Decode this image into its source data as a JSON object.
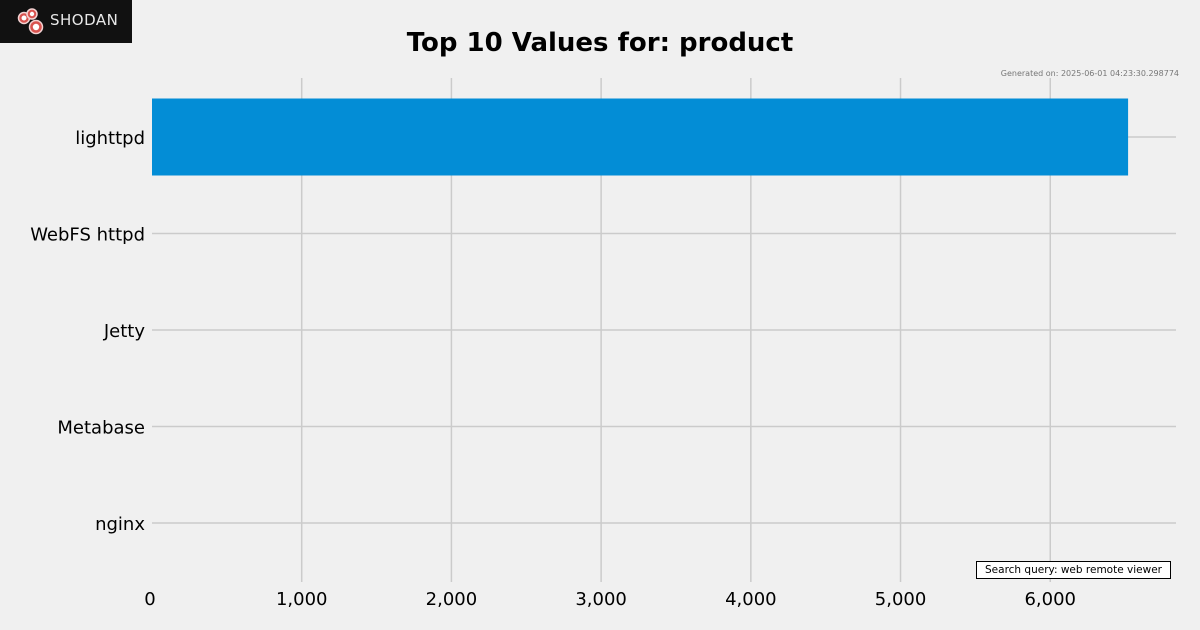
{
  "logo": {
    "text": "SHODAN"
  },
  "generated_text": "Generated on: 2025-06-01 04:23:30.298774",
  "query_text": "Search query: web remote viewer",
  "colors": {
    "bar": "#038dd6",
    "grid": "#cbcbcb",
    "background": "#f0f0f0"
  },
  "chart_data": {
    "type": "bar",
    "orientation": "horizontal",
    "title": "Top 10 Values for: product",
    "categories": [
      "lighttpd",
      "WebFS httpd",
      "Jetty",
      "Metabase",
      "nginx"
    ],
    "values": [
      6520,
      0,
      0,
      0,
      0
    ],
    "xlim": [
      0,
      6840
    ],
    "xticks": [
      0,
      1000,
      2000,
      3000,
      4000,
      5000,
      6000
    ],
    "xtick_labels": [
      "0",
      "1,000",
      "2,000",
      "3,000",
      "4,000",
      "5,000",
      "6,000"
    ],
    "grid": true,
    "xlabel": "",
    "ylabel": ""
  }
}
